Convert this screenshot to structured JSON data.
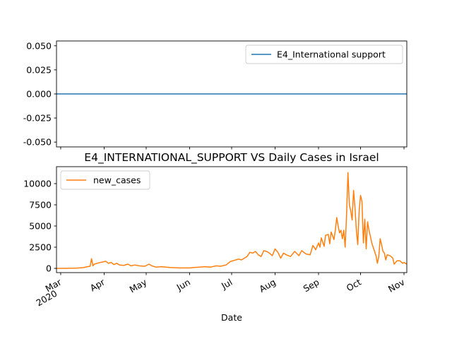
{
  "chart_data": [
    {
      "type": "line",
      "title": "",
      "ylim": [
        -0.055,
        0.055
      ],
      "yticks": [
        "0.050",
        "0.025",
        "0.000",
        "-0.025",
        "-0.050"
      ],
      "ytick_values": [
        0.05,
        0.025,
        0.0,
        -0.025,
        -0.05
      ],
      "legend": {
        "placement": "top-right",
        "entries": [
          "E4_International support"
        ]
      },
      "series": [
        {
          "name": "E4_International support",
          "color": "#1f77b4",
          "x": [
            "2020-02-27",
            "2020-11-03"
          ],
          "values": [
            0,
            0
          ]
        }
      ]
    },
    {
      "type": "line",
      "title": "E4_INTERNATIONAL_SUPPORT VS Daily Cases in Israel",
      "xlabel": "Date",
      "ylim": [
        -500,
        12000
      ],
      "yticks": [
        "10000",
        "7500",
        "5000",
        "2500",
        "0"
      ],
      "ytick_values": [
        10000,
        7500,
        5000,
        2500,
        0
      ],
      "xticks": [
        {
          "date": "2020-03-01",
          "label": "Mar",
          "sublabel": "2020"
        },
        {
          "date": "2020-04-01",
          "label": "Apr",
          "sublabel": ""
        },
        {
          "date": "2020-05-01",
          "label": "May",
          "sublabel": ""
        },
        {
          "date": "2020-06-01",
          "label": "Jun",
          "sublabel": ""
        },
        {
          "date": "2020-07-01",
          "label": "Jul",
          "sublabel": ""
        },
        {
          "date": "2020-08-01",
          "label": "Aug",
          "sublabel": ""
        },
        {
          "date": "2020-09-01",
          "label": "Sep",
          "sublabel": ""
        },
        {
          "date": "2020-10-01",
          "label": "Oct",
          "sublabel": ""
        },
        {
          "date": "2020-11-01",
          "label": "Nov",
          "sublabel": ""
        }
      ],
      "xlim": [
        "2020-02-27",
        "2020-11-03"
      ],
      "legend": {
        "placement": "top-left",
        "entries": [
          "new_cases"
        ]
      },
      "series": [
        {
          "name": "new_cases",
          "color": "#ff7f0e",
          "x": [
            "2020-02-27",
            "2020-03-05",
            "2020-03-12",
            "2020-03-17",
            "2020-03-20",
            "2020-03-22",
            "2020-03-23",
            "2020-03-24",
            "2020-03-25",
            "2020-03-28",
            "2020-03-31",
            "2020-04-02",
            "2020-04-04",
            "2020-04-06",
            "2020-04-08",
            "2020-04-10",
            "2020-04-12",
            "2020-04-15",
            "2020-04-18",
            "2020-04-20",
            "2020-04-23",
            "2020-04-26",
            "2020-04-30",
            "2020-05-03",
            "2020-05-05",
            "2020-05-08",
            "2020-05-12",
            "2020-05-18",
            "2020-05-25",
            "2020-06-01",
            "2020-06-04",
            "2020-06-08",
            "2020-06-12",
            "2020-06-16",
            "2020-06-20",
            "2020-06-23",
            "2020-06-27",
            "2020-06-30",
            "2020-07-02",
            "2020-07-04",
            "2020-07-06",
            "2020-07-08",
            "2020-07-10",
            "2020-07-12",
            "2020-07-14",
            "2020-07-16",
            "2020-07-18",
            "2020-07-20",
            "2020-07-22",
            "2020-07-24",
            "2020-07-26",
            "2020-07-28",
            "2020-07-30",
            "2020-08-01",
            "2020-08-03",
            "2020-08-05",
            "2020-08-07",
            "2020-08-09",
            "2020-08-12",
            "2020-08-15",
            "2020-08-18",
            "2020-08-20",
            "2020-08-23",
            "2020-08-26",
            "2020-08-28",
            "2020-08-30",
            "2020-09-01",
            "2020-09-02",
            "2020-09-03",
            "2020-09-05",
            "2020-09-06",
            "2020-09-08",
            "2020-09-09",
            "2020-09-10",
            "2020-09-12",
            "2020-09-13",
            "2020-09-14",
            "2020-09-15",
            "2020-09-16",
            "2020-09-17",
            "2020-09-18",
            "2020-09-19",
            "2020-09-20",
            "2020-09-21",
            "2020-09-22",
            "2020-09-23",
            "2020-09-24",
            "2020-09-25",
            "2020-09-26",
            "2020-09-27",
            "2020-09-28",
            "2020-09-29",
            "2020-09-30",
            "2020-10-01",
            "2020-10-02",
            "2020-10-03",
            "2020-10-04",
            "2020-10-05",
            "2020-10-06",
            "2020-10-07",
            "2020-10-08",
            "2020-10-09",
            "2020-10-10",
            "2020-10-12",
            "2020-10-13",
            "2020-10-14",
            "2020-10-15",
            "2020-10-16",
            "2020-10-17",
            "2020-10-18",
            "2020-10-19",
            "2020-10-20",
            "2020-10-22",
            "2020-10-24",
            "2020-10-25",
            "2020-10-27",
            "2020-10-29",
            "2020-10-31",
            "2020-11-01",
            "2020-11-02",
            "2020-11-03"
          ],
          "values": [
            0,
            10,
            30,
            80,
            200,
            250,
            1150,
            300,
            500,
            650,
            750,
            850,
            600,
            700,
            450,
            600,
            400,
            350,
            500,
            300,
            400,
            300,
            250,
            500,
            300,
            150,
            200,
            100,
            50,
            50,
            100,
            150,
            200,
            150,
            300,
            250,
            400,
            800,
            900,
            1000,
            1100,
            1000,
            1200,
            1400,
            1900,
            1800,
            2000,
            1600,
            1400,
            2100,
            2000,
            1800,
            1500,
            2300,
            1900,
            1200,
            1800,
            1600,
            1400,
            2000,
            1500,
            2100,
            1700,
            1600,
            2700,
            2200,
            3000,
            2500,
            3600,
            2600,
            3900,
            4000,
            2900,
            4300,
            3400,
            4500,
            6000,
            5000,
            4200,
            4500,
            3500,
            4500,
            2500,
            6200,
            11300,
            7500,
            6800,
            5700,
            9200,
            7200,
            4500,
            2800,
            6800,
            8600,
            7900,
            3000,
            5800,
            2300,
            5500,
            4500,
            3800,
            3000,
            2500,
            1500,
            600,
            1400,
            3500,
            2800,
            2000,
            1800,
            1000,
            1600,
            1500,
            1200,
            500,
            900,
            900,
            600,
            700,
            600,
            500
          ]
        }
      ]
    }
  ]
}
